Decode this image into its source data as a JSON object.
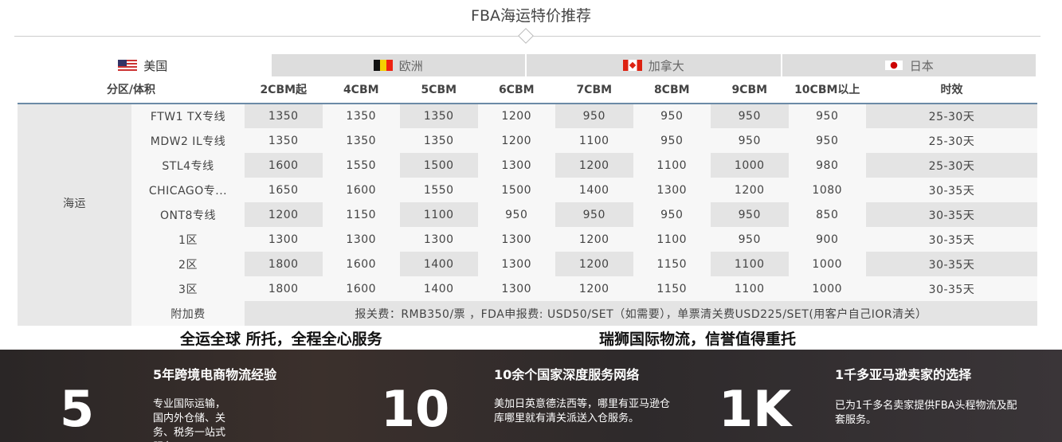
{
  "title": "FBA海运特价推荐",
  "tabs": [
    {
      "label": "美国",
      "flag": "us",
      "active": true
    },
    {
      "label": "欧洲",
      "flag": "be"
    },
    {
      "label": "加拿大",
      "flag": "ca"
    },
    {
      "label": "日本",
      "flag": "jp"
    }
  ],
  "table": {
    "headers": [
      "分区/体积",
      "2CBM起",
      "4CBM",
      "5CBM",
      "6CBM",
      "7CBM",
      "8CBM",
      "9CBM",
      "10CBM以上",
      "时效"
    ],
    "area": "海运",
    "rows": [
      {
        "route": "FTW1 TX专线",
        "values": [
          "1350",
          "1350",
          "1350",
          "1200",
          "950",
          "950",
          "950",
          "950"
        ],
        "time": "25-30天"
      },
      {
        "route": "MDW2 IL专线",
        "values": [
          "1350",
          "1350",
          "1350",
          "1200",
          "1100",
          "950",
          "950",
          "950"
        ],
        "time": "25-30天"
      },
      {
        "route": "STL4专线",
        "values": [
          "1600",
          "1550",
          "1500",
          "1300",
          "1200",
          "1100",
          "1000",
          "980"
        ],
        "time": "25-30天"
      },
      {
        "route": "CHICAGO专...",
        "values": [
          "1650",
          "1600",
          "1550",
          "1500",
          "1400",
          "1300",
          "1200",
          "1080"
        ],
        "time": "30-35天"
      },
      {
        "route": "ONT8专线",
        "values": [
          "1200",
          "1150",
          "1100",
          "950",
          "950",
          "950",
          "950",
          "850"
        ],
        "time": "30-35天"
      },
      {
        "route": "1区",
        "values": [
          "1300",
          "1300",
          "1300",
          "1300",
          "1200",
          "1100",
          "950",
          "900"
        ],
        "time": "30-35天"
      },
      {
        "route": "2区",
        "values": [
          "1800",
          "1600",
          "1400",
          "1300",
          "1200",
          "1150",
          "1100",
          "1000"
        ],
        "time": "30-35天"
      },
      {
        "route": "3区",
        "values": [
          "1800",
          "1600",
          "1400",
          "1300",
          "1200",
          "1150",
          "1100",
          "1000"
        ],
        "time": "30-35天"
      }
    ],
    "surcharge_label": "附加费",
    "surcharge": "报关费：RMB350/票 ，FDA申报费: USD50/SET（如需要），单票清关费USD225/SET(用客户自己IOR清关）"
  },
  "slogans": [
    "全运全球 所托，全程全心服务",
    "瑞狮国际物流，信誉值得重托"
  ],
  "stats": [
    {
      "number": "5",
      "heading": "5年跨境电商物流经验",
      "text": "专业国际运输，国内外仓储、关务、税务一站式服务。"
    },
    {
      "number": "10",
      "heading": "10余个国家深度服务网络",
      "text": "美加日英意德法西等，哪里有亚马逊仓库哪里就有清关派送入仓服务。"
    },
    {
      "number": "1K",
      "heading": "1千多亚马逊卖家的选择",
      "text": "已为1千多名卖家提供FBA头程物流及配套服务。"
    }
  ]
}
